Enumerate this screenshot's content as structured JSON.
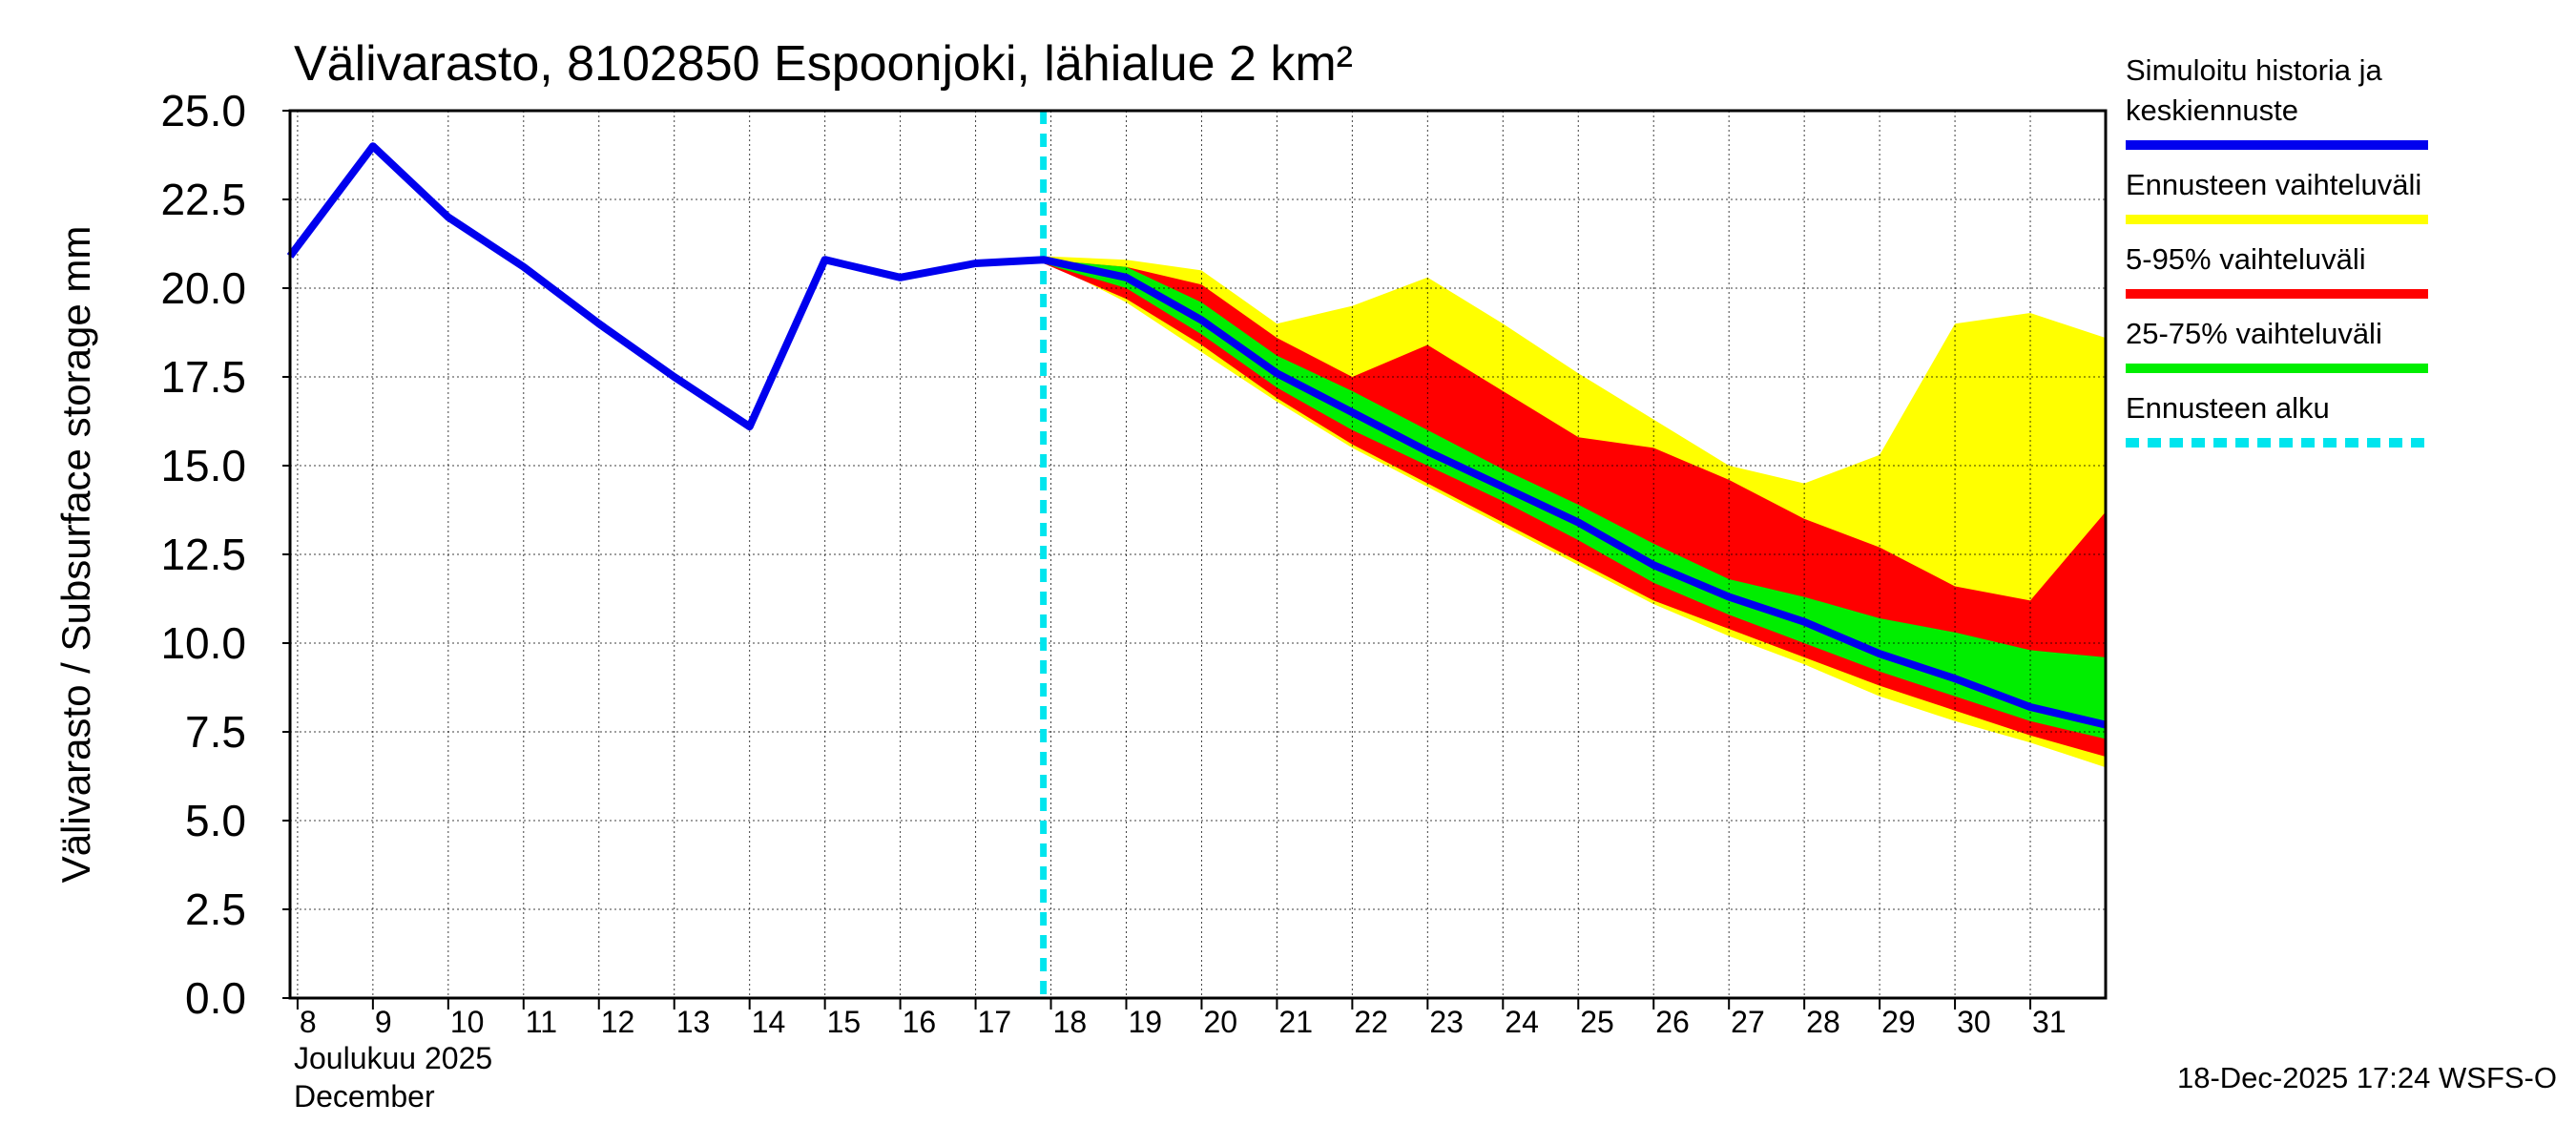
{
  "chart_data": {
    "type": "area",
    "title": "Välivarasto, 8102850 Espoonjoki, lähialue 2 km²",
    "ylabel": "Välivarasto / Subsurface storage  mm",
    "ylim": [
      0,
      25
    ],
    "yticks": [
      "0.0",
      "2.5",
      "5.0",
      "7.5",
      "10.0",
      "12.5",
      "15.0",
      "17.5",
      "20.0",
      "22.5",
      "25.0"
    ],
    "xlim": [
      7.9,
      32
    ],
    "xticks": [
      {
        "day": 8,
        "label": "8"
      },
      {
        "day": 9,
        "label": "9"
      },
      {
        "day": 10,
        "label": "10"
      },
      {
        "day": 11,
        "label": "11"
      },
      {
        "day": 12,
        "label": "12"
      },
      {
        "day": 13,
        "label": "13"
      },
      {
        "day": 14,
        "label": "14"
      },
      {
        "day": 15,
        "label": "15"
      },
      {
        "day": 16,
        "label": "16"
      },
      {
        "day": 17,
        "label": "17"
      },
      {
        "day": 18,
        "label": "18"
      },
      {
        "day": 19,
        "label": "19"
      },
      {
        "day": 20,
        "label": "20"
      },
      {
        "day": 21,
        "label": "21"
      },
      {
        "day": 22,
        "label": "22"
      },
      {
        "day": 23,
        "label": "23"
      },
      {
        "day": 24,
        "label": "24"
      },
      {
        "day": 25,
        "label": "25"
      },
      {
        "day": 26,
        "label": "26"
      },
      {
        "day": 27,
        "label": "27"
      },
      {
        "day": 28,
        "label": "28"
      },
      {
        "day": 29,
        "label": "29"
      },
      {
        "day": 30,
        "label": "30"
      },
      {
        "day": 31,
        "label": "31"
      }
    ],
    "xlabel_month_fi": "Joulukuu  2025",
    "xlabel_month_en": "December",
    "forecast_start_day": 17.9,
    "series": [
      {
        "name": "Simuloitu historia ja keskiennuste",
        "kind": "line",
        "color": "#0000ee",
        "x": [
          7.9,
          9,
          10,
          11,
          12,
          13,
          14,
          15,
          16,
          17,
          17.9,
          19,
          20,
          21,
          22,
          23,
          24,
          25,
          26,
          27,
          28,
          29,
          30,
          31,
          32
        ],
        "y": [
          20.9,
          24.0,
          22.0,
          20.6,
          19.0,
          17.5,
          16.1,
          20.8,
          20.3,
          20.7,
          20.8,
          20.3,
          19.1,
          17.6,
          16.5,
          15.4,
          14.4,
          13.4,
          12.2,
          11.3,
          10.6,
          9.7,
          9.0,
          8.2,
          7.7
        ]
      },
      {
        "name": "Ennusteen vaihteluväli",
        "kind": "band",
        "color": "#ffff00",
        "x": [
          17.9,
          19,
          20,
          21,
          22,
          23,
          24,
          25,
          26,
          27,
          28,
          29,
          30,
          31,
          32
        ],
        "upper": [
          20.9,
          20.8,
          20.5,
          19.0,
          19.5,
          20.3,
          19.0,
          17.6,
          16.3,
          15.0,
          14.5,
          15.3,
          19.0,
          19.3,
          18.6
        ],
        "lower": [
          20.8,
          19.6,
          18.2,
          16.8,
          15.5,
          14.4,
          13.3,
          12.2,
          11.1,
          10.2,
          9.4,
          8.5,
          7.8,
          7.2,
          6.5
        ]
      },
      {
        "name": "5-95% vaihteluväli",
        "kind": "band",
        "color": "#ff0000",
        "x": [
          17.9,
          19,
          20,
          21,
          22,
          23,
          24,
          25,
          26,
          27,
          28,
          29,
          30,
          31,
          32
        ],
        "upper": [
          20.8,
          20.6,
          20.1,
          18.6,
          17.5,
          18.4,
          17.1,
          15.8,
          15.5,
          14.6,
          13.5,
          12.7,
          11.6,
          11.2,
          13.7
        ],
        "lower": [
          20.7,
          19.7,
          18.4,
          16.9,
          15.6,
          14.5,
          13.4,
          12.3,
          11.2,
          10.4,
          9.6,
          8.8,
          8.1,
          7.4,
          6.8
        ]
      },
      {
        "name": "25-75% vaihteluväli",
        "kind": "band",
        "color": "#00ee00",
        "x": [
          17.9,
          19,
          20,
          21,
          22,
          23,
          24,
          25,
          26,
          27,
          28,
          29,
          30,
          31,
          32
        ],
        "upper": [
          20.8,
          20.6,
          19.6,
          18.1,
          17.1,
          16.0,
          14.9,
          13.9,
          12.8,
          11.8,
          11.3,
          10.7,
          10.3,
          9.8,
          9.6
        ],
        "lower": [
          20.7,
          20.0,
          18.7,
          17.2,
          16.0,
          15.0,
          14.0,
          12.9,
          11.7,
          10.8,
          10.0,
          9.2,
          8.5,
          7.8,
          7.3
        ]
      }
    ],
    "legend": [
      {
        "label_lines": [
          "Simuloitu historia ja",
          "keskiennuste"
        ],
        "color": "#0000ee",
        "style": "solid"
      },
      {
        "label_lines": [
          "Ennusteen vaihteluväli"
        ],
        "color": "#ffff00",
        "style": "solid"
      },
      {
        "label_lines": [
          "5-95% vaihteluväli"
        ],
        "color": "#ff0000",
        "style": "solid"
      },
      {
        "label_lines": [
          "25-75% vaihteluväli"
        ],
        "color": "#00ee00",
        "style": "solid"
      },
      {
        "label_lines": [
          "Ennusteen alku"
        ],
        "color": "#00e5ee",
        "style": "dashed"
      }
    ],
    "legend_position": "right",
    "grid": true,
    "footer": "18-Dec-2025 17:24 WSFS-O"
  }
}
